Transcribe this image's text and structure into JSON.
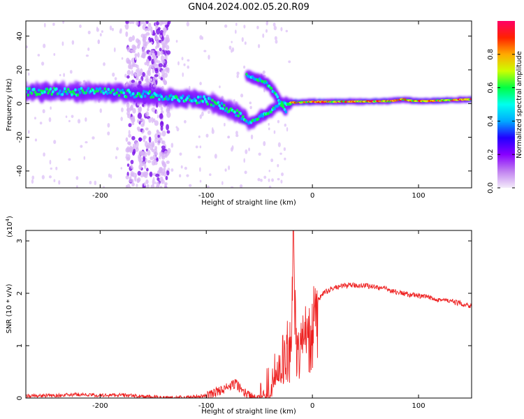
{
  "title": "GN04.2024.002.05.20.R09",
  "colors": {
    "axis": "#000000",
    "snr_line": "#ee2222",
    "colormap": [
      "#f4ecfa",
      "#c080f0",
      "#8800ff",
      "#2200ff",
      "#00aaff",
      "#00ffee",
      "#00ff44",
      "#ccff00",
      "#ffaa00",
      "#ff2200",
      "#ff0066"
    ]
  },
  "chart_data": [
    {
      "type": "heatmap",
      "xlabel": "Height of straight line (km)",
      "ylabel": "Frequency (Hz)",
      "xlim": [
        -270,
        150
      ],
      "ylim": [
        -50,
        49
      ],
      "xticks": [
        -200,
        -100,
        0,
        100
      ],
      "yticks": [
        -40,
        -20,
        0,
        20,
        40
      ],
      "colorbar": {
        "label": "Normalized spectral amplitude",
        "range": [
          0,
          1
        ],
        "ticks": [
          0.0,
          0.2,
          0.4,
          0.6,
          0.8
        ],
        "tick_labels": [
          "0.0",
          "0.2",
          "0.4",
          "0.6",
          "0.8"
        ]
      },
      "bands": [
        {
          "x": [
            -270,
            -200,
            -150,
            -130,
            -100,
            -80,
            -70,
            -62
          ],
          "y": [
            7,
            7,
            5,
            3,
            2,
            -3,
            -6,
            -10
          ],
          "amplitude": 0.35
        },
        {
          "x": [
            -60,
            -50,
            -40,
            -30,
            -20
          ],
          "y": [
            -12,
            -8,
            -5,
            0,
            0
          ],
          "amplitude": 0.3
        },
        {
          "x": [
            -62,
            -55,
            -45,
            -40,
            -35,
            -30,
            -25
          ],
          "y": [
            17,
            15,
            13,
            10,
            6,
            0,
            -5
          ],
          "amplitude": 0.3
        },
        {
          "x": [
            -20,
            0,
            50,
            75,
            85,
            95,
            110,
            150
          ],
          "y": [
            0.5,
            1,
            1.2,
            1.5,
            2.5,
            1.5,
            1.5,
            2.5
          ],
          "amplitude": 0.75
        }
      ],
      "noise_column_x": [
        -175,
        -135
      ]
    },
    {
      "type": "line",
      "xlabel": "Height of straight line (km)",
      "ylabel": "SNR (10 * v/v)",
      "y_multiplier": "(x10",
      "y_multiplier_exp": "4",
      "y_multiplier_close": ")",
      "xlim": [
        -270,
        150
      ],
      "ylim": [
        0,
        3.2
      ],
      "xticks": [
        -200,
        -100,
        0,
        100
      ],
      "yticks": [
        0,
        1,
        2,
        3
      ],
      "series": [
        {
          "x": [
            -270,
            -240,
            -220,
            -200,
            -180,
            -160,
            -140,
            -120,
            -100,
            -90,
            -80,
            -72,
            -66,
            -60,
            -52,
            -45,
            -40,
            -35,
            -30,
            -25,
            -20,
            -18,
            -15,
            -10,
            -5,
            0,
            5,
            10,
            20,
            30,
            40,
            50,
            60,
            70,
            80,
            90,
            100,
            110,
            120,
            130,
            140,
            150
          ],
          "y": [
            0.04,
            0.05,
            0.07,
            0.05,
            0.06,
            0.03,
            0.01,
            0.01,
            0.04,
            0.12,
            0.2,
            0.28,
            0.14,
            0.05,
            0.04,
            0.06,
            0.2,
            0.5,
            0.85,
            1.05,
            1.1,
            3.2,
            0.9,
            1.3,
            1.5,
            1.7,
            1.85,
            2.0,
            2.1,
            2.15,
            2.15,
            2.15,
            2.12,
            2.08,
            2.02,
            1.98,
            1.95,
            1.92,
            1.88,
            1.85,
            1.8,
            1.76
          ]
        }
      ]
    }
  ]
}
